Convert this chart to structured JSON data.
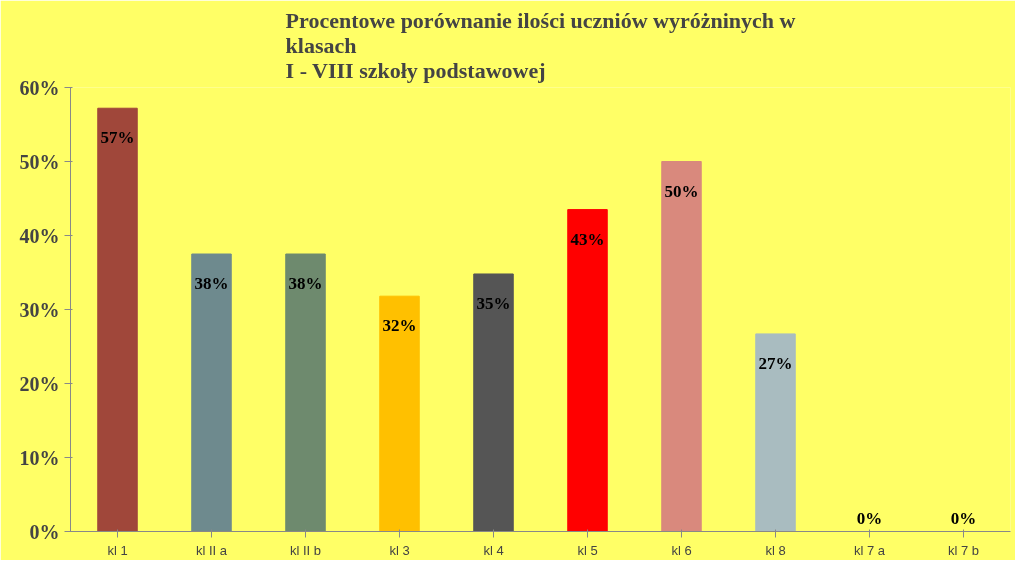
{
  "chart_data": {
    "type": "bar",
    "title": "Procentowe porównanie ilości uczniów wyróżninych w\nklasach\nI - VIII szkoły podstawowej",
    "categories": [
      "kl 1",
      "kl II a",
      "kl II b",
      "kl 3",
      "kl 4",
      "kl 5",
      "kl 6",
      "kl 8",
      "kl 7 a",
      "kl 7 b"
    ],
    "values": [
      57.2,
      37.5,
      37.5,
      31.8,
      34.8,
      43.5,
      50,
      26.7,
      0,
      0
    ],
    "colors": [
      "#a0473a",
      "#6e8a8e",
      "#6e8a6e",
      "#ffc000",
      "#555555",
      "#ff0000",
      "#d9897d",
      "#a9bcc0",
      "#a9bcc0",
      "#a9bcc0"
    ],
    "value_labels": [
      "57%",
      "38%",
      "38%",
      "32%",
      "35%",
      "43%",
      "50%",
      "27%",
      "0%",
      "0%"
    ],
    "ylim": [
      0,
      60
    ],
    "yticks": [
      {
        "value": 0,
        "label": "0%"
      },
      {
        "value": 10,
        "label": "10%"
      },
      {
        "value": 20,
        "label": "20%"
      },
      {
        "value": 30,
        "label": "30%"
      },
      {
        "value": 40,
        "label": "40%"
      },
      {
        "value": 50,
        "label": "50%"
      },
      {
        "value": 60,
        "label": "60%"
      }
    ],
    "grid": false
  }
}
